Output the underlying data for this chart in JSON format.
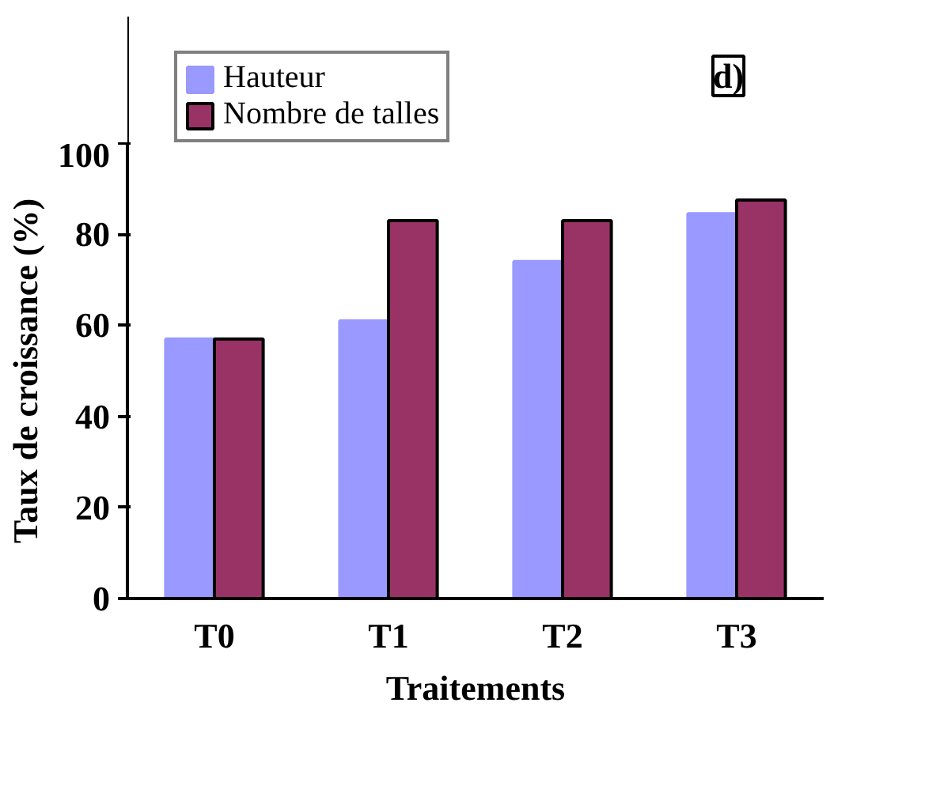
{
  "chart_data": {
    "type": "bar",
    "xlabel": "Traitements",
    "ylabel": "Taux de croissance (%)",
    "categories": [
      "T0",
      "T1",
      "T2",
      "T3"
    ],
    "series": [
      {
        "name": "Hauteur",
        "color": "#9999ff",
        "values": [
          57,
          61,
          74,
          84.5
        ]
      },
      {
        "name": "Nombre de talles",
        "color": "#993366",
        "values": [
          57,
          83,
          83,
          87.5
        ]
      }
    ],
    "ylim": [
      0,
      100
    ],
    "yticks": [
      0,
      20,
      40,
      60,
      80,
      100
    ],
    "legend": "top",
    "annotations": [
      "d)"
    ]
  }
}
